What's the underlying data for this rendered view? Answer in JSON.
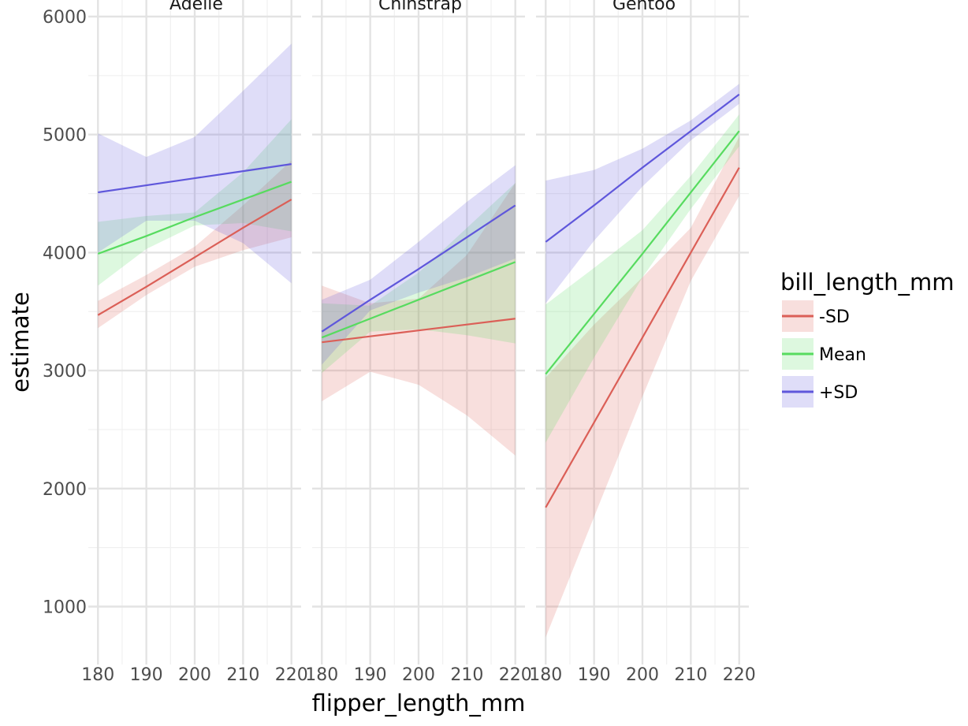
{
  "chart_data": {
    "type": "line",
    "facet_by": "species",
    "panels": [
      "Adelie",
      "Chinstrap",
      "Gentoo"
    ],
    "xlabel": "flipper_length_mm",
    "ylabel": "estimate",
    "xlim": [
      180,
      220
    ],
    "ylim": [
      570,
      6000
    ],
    "x_ticks": [
      180,
      190,
      200,
      210,
      220
    ],
    "y_ticks": [
      1000,
      2000,
      3000,
      4000,
      5000,
      6000
    ],
    "grid": true,
    "legend": {
      "title": "bill_length_mm",
      "position": "right"
    },
    "series": [
      {
        "name": "-SD",
        "color": "#db5f57"
      },
      {
        "name": "Mean",
        "color": "#57db5f"
      },
      {
        "name": "+SD",
        "color": "#5f57db"
      }
    ],
    "x": [
      180,
      190,
      200,
      210,
      220
    ],
    "data": {
      "Adelie": {
        "-SD": {
          "estimate": [
            3470,
            3710,
            3960,
            4210,
            4450
          ],
          "lower": [
            3360,
            3640,
            3880,
            4020,
            4130
          ],
          "upper": [
            3590,
            3810,
            4050,
            4400,
            4780
          ]
        },
        "Mean": {
          "estimate": [
            3990,
            4140,
            4300,
            4450,
            4600
          ],
          "lower": [
            3720,
            4030,
            4230,
            4250,
            4180
          ],
          "upper": [
            4260,
            4310,
            4340,
            4680,
            5130
          ]
        },
        "+SD": {
          "estimate": [
            4510,
            4570,
            4630,
            4690,
            4750
          ],
          "lower": [
            4000,
            4270,
            4270,
            4080,
            3740
          ],
          "upper": [
            5010,
            4810,
            4980,
            5370,
            5770
          ]
        }
      },
      "Chinstrap": {
        "-SD": {
          "estimate": [
            3240,
            3290,
            3340,
            3390,
            3440
          ],
          "lower": [
            2740,
            2990,
            2880,
            2620,
            2280
          ],
          "upper": [
            3720,
            3570,
            3610,
            3980,
            4590
          ]
        },
        "Mean": {
          "estimate": [
            3280,
            3440,
            3600,
            3760,
            3920
          ],
          "lower": [
            2980,
            3330,
            3350,
            3300,
            3230
          ],
          "upper": [
            3570,
            3550,
            3830,
            4210,
            4590
          ]
        },
        "+SD": {
          "estimate": [
            3330,
            3600,
            3860,
            4130,
            4400
          ],
          "lower": [
            3050,
            3510,
            3660,
            3790,
            3950
          ],
          "upper": [
            3600,
            3770,
            4090,
            4430,
            4740
          ]
        }
      },
      "Gentoo": {
        "-SD": {
          "estimate": [
            1840,
            2560,
            3280,
            4000,
            4720
          ],
          "lower": [
            740,
            1760,
            2780,
            3760,
            4480
          ],
          "upper": [
            2940,
            3390,
            3790,
            4210,
            4980
          ]
        },
        "Mean": {
          "estimate": [
            2970,
            3480,
            3990,
            4510,
            5030
          ],
          "lower": [
            2390,
            3110,
            3790,
            4370,
            4900
          ],
          "upper": [
            3560,
            3870,
            4190,
            4650,
            5170
          ]
        },
        "+SD": {
          "estimate": [
            4090,
            4400,
            4720,
            5030,
            5340
          ],
          "lower": [
            3570,
            4100,
            4560,
            4950,
            5260
          ],
          "upper": [
            4610,
            4700,
            4880,
            5120,
            5430
          ]
        }
      }
    }
  }
}
